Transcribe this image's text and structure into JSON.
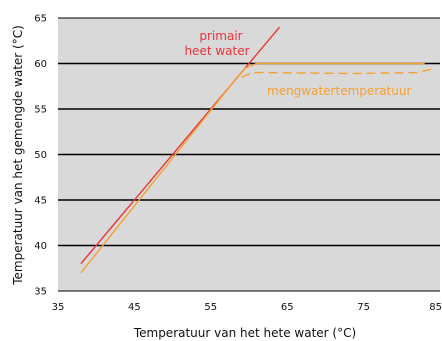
{
  "chart_data": {
    "type": "line",
    "title": "",
    "xlabel": "Temperatuur van het hete water (°C)",
    "ylabel": "Temperatuur van het gemengde water (°C)",
    "xlim": [
      35,
      85
    ],
    "ylim": [
      35,
      65
    ],
    "x_ticks": [
      35,
      45,
      55,
      65,
      75,
      85
    ],
    "y_ticks": [
      35,
      40,
      45,
      50,
      55,
      60,
      65
    ],
    "grid": "horizontal",
    "plot_background": "#d9d9d9",
    "series": [
      {
        "name": "primair heet water",
        "color": "#e8343a",
        "style": "solid",
        "points": [
          [
            38.0,
            38.0
          ],
          [
            64.0,
            64.0
          ]
        ]
      },
      {
        "name": "mengwatertemperatuur",
        "color": "#f5a033",
        "style": "solid",
        "points": [
          [
            38.0,
            37.0
          ],
          [
            58.0,
            58.0
          ],
          [
            59.5,
            59.5
          ],
          [
            61.0,
            60.0
          ],
          [
            83.0,
            60.0
          ]
        ]
      },
      {
        "name": "",
        "color": "#f5a033",
        "style": "dashed",
        "points": [
          [
            59.0,
            58.5
          ],
          [
            60.5,
            59.0
          ],
          [
            62.0,
            59.0
          ],
          [
            74.0,
            58.9
          ],
          [
            82.0,
            59.0
          ],
          [
            84.0,
            59.4
          ]
        ]
      }
    ],
    "annotations": [
      {
        "text": "primair",
        "color": "#e8343a"
      },
      {
        "text": "heet water",
        "color": "#e8343a"
      },
      {
        "text": "mengwatertemperatuur",
        "color": "#f5a033"
      }
    ]
  }
}
